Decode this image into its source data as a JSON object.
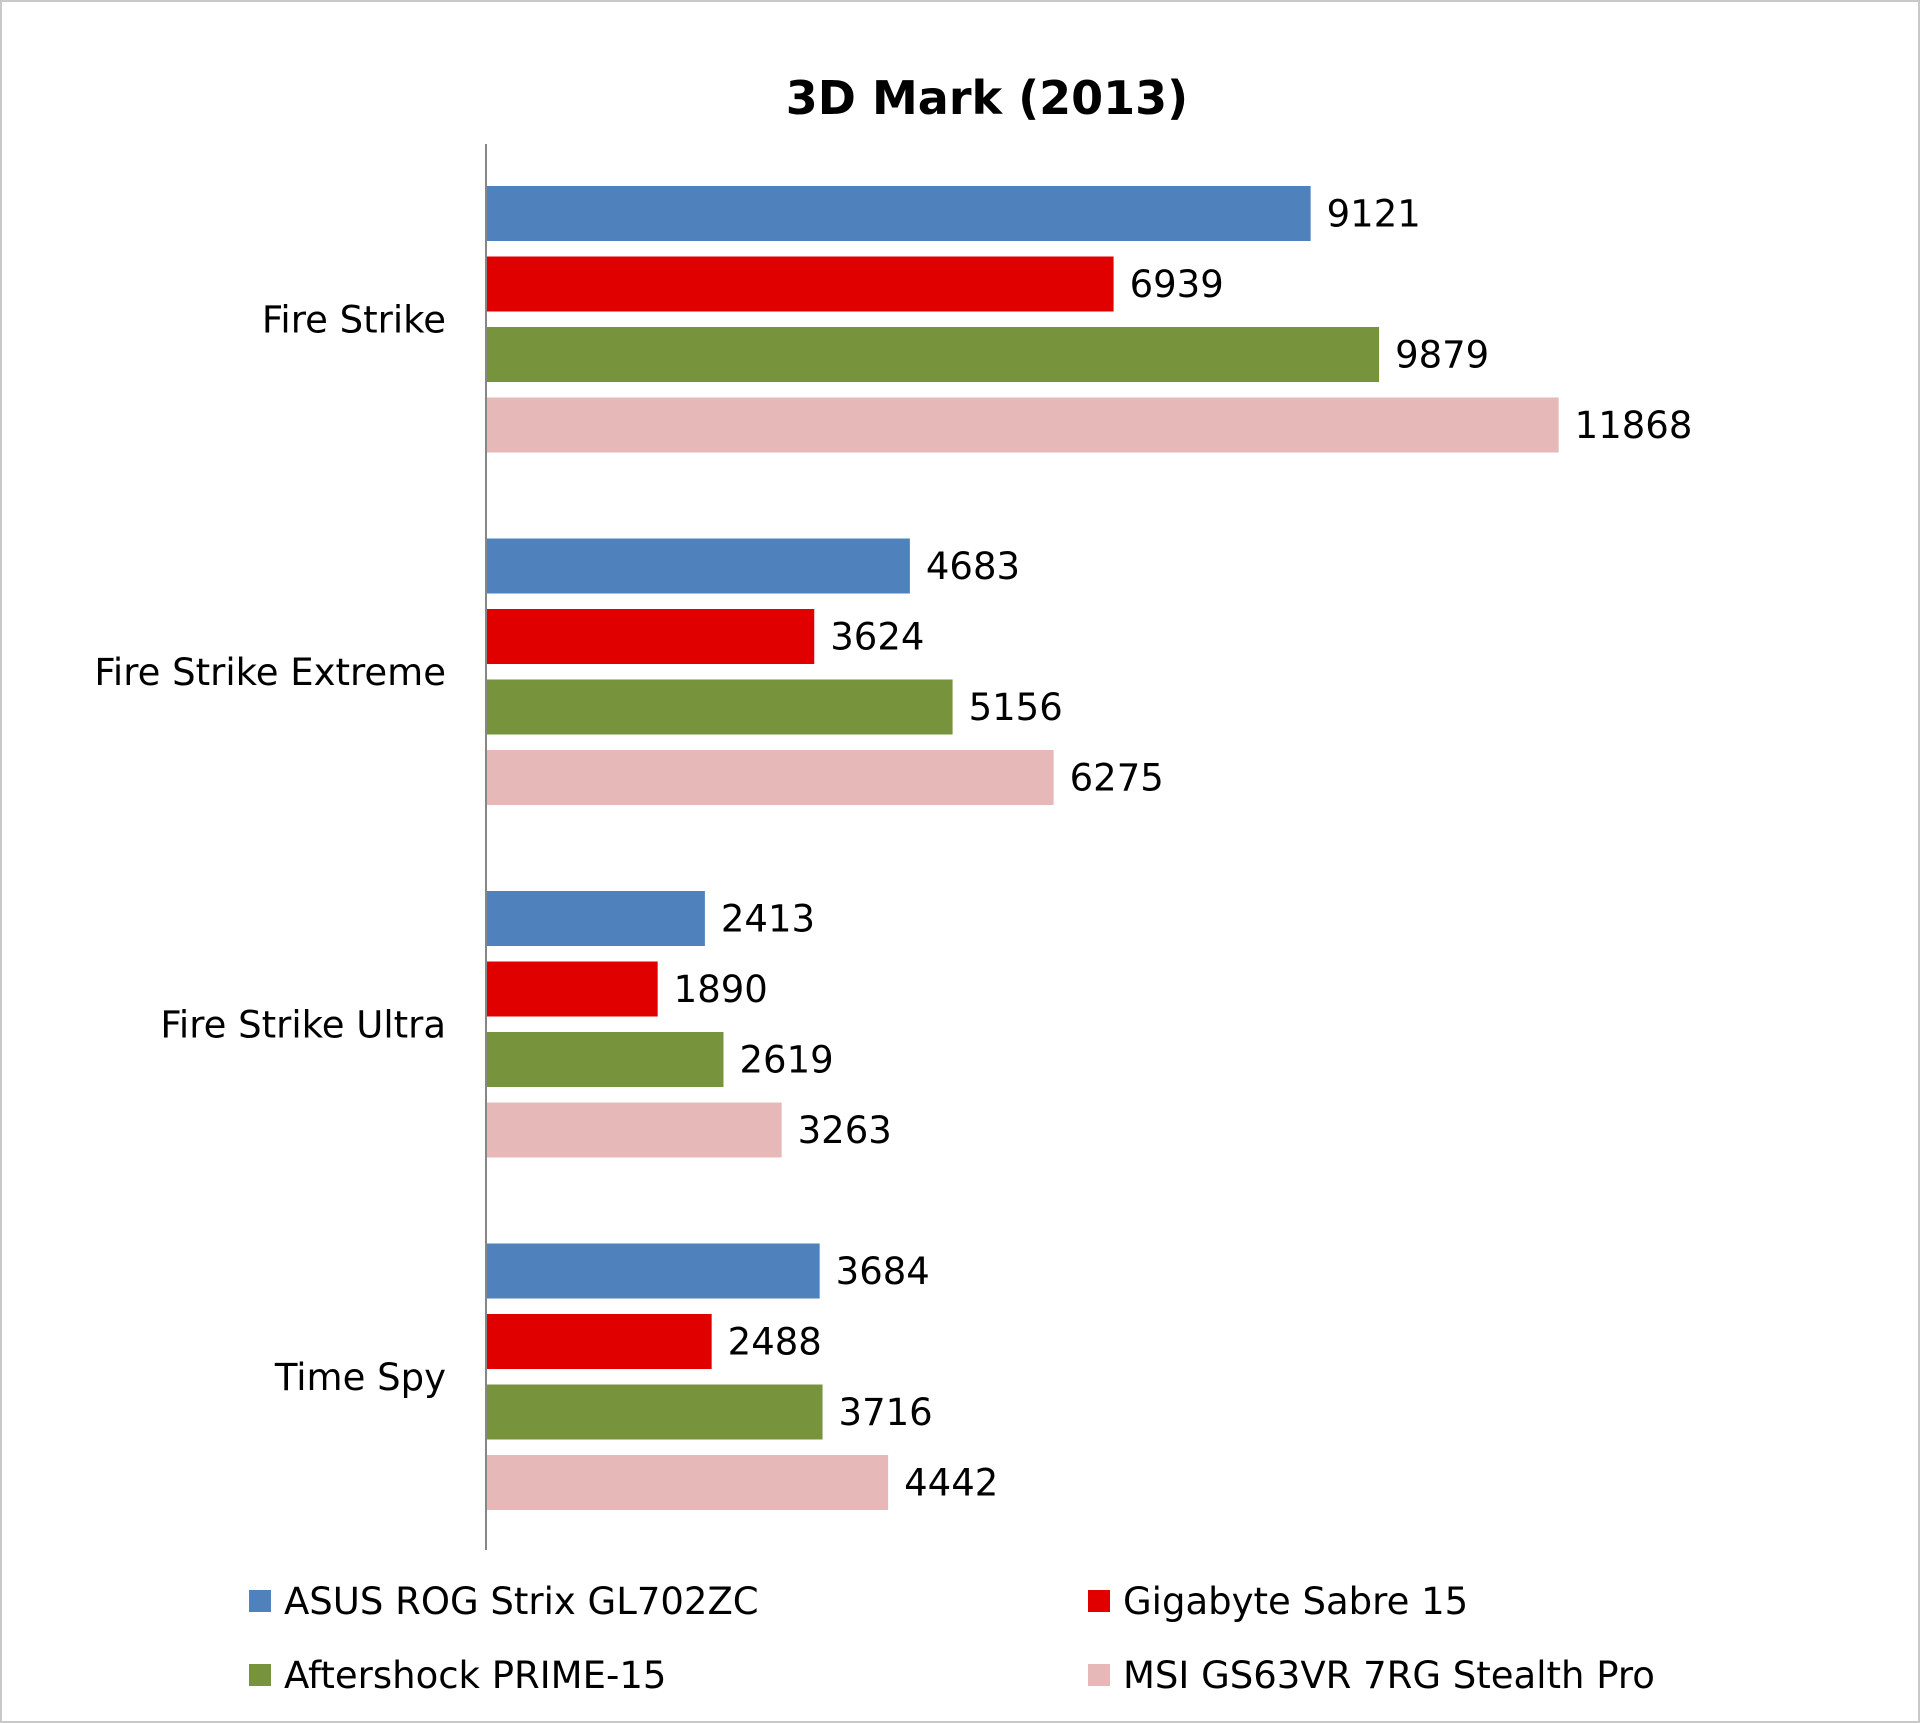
{
  "chart_data": {
    "type": "bar",
    "orientation": "horizontal",
    "title": "3D Mark (2013)",
    "xlabel": "",
    "ylabel": "",
    "categories": [
      "Fire Strike",
      "Fire Strike Extreme",
      "Fire Strike Ultra",
      "Time Spy"
    ],
    "series": [
      {
        "name": "ASUS ROG Strix GL702ZC",
        "color": "#4f81bd",
        "values": [
          9121,
          4683,
          2413,
          3684
        ]
      },
      {
        "name": "Gigabyte Sabre 15",
        "color": "#e00000",
        "values": [
          6939,
          3624,
          1890,
          2488
        ]
      },
      {
        "name": "Aftershock PRIME-15",
        "color": "#77933c",
        "values": [
          9879,
          5156,
          2619,
          3716
        ]
      },
      {
        "name": "MSI GS63VR 7RG Stealth Pro",
        "color": "#e6b9b8",
        "values": [
          11868,
          6275,
          3263,
          4442
        ]
      }
    ],
    "xlim": [
      0,
      14000
    ],
    "grid": false,
    "data_labels": true,
    "legend_position": "bottom"
  }
}
